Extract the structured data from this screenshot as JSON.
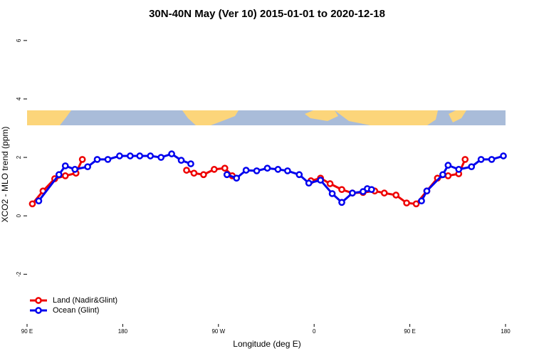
{
  "chart_data": {
    "type": "line",
    "title": "30N-40N May (Ver 10)   2015-01-01 to 2020-12-18",
    "x_label": "Longitude (deg E)",
    "y_label": "XCO2 - MLO trend (ppm)",
    "xlim": [
      90,
      540
    ],
    "xticks": [
      {
        "value": 90,
        "label": "90 E"
      },
      180,
      {
        "value": 270,
        "label": "90 W"
      },
      {
        "value": 360,
        "label": "0"
      },
      {
        "value": 450,
        "label": "90 E"
      },
      {
        "value": 540,
        "label": "180"
      }
    ],
    "ylim": [
      -3.7,
      6.46
    ],
    "yticks": [
      -2,
      0,
      2,
      4,
      6
    ],
    "legend": "bottom-left",
    "series": [
      {
        "name": "Land (Nadir&Glint)",
        "color": "#ee0000",
        "x": [
          95,
          105,
          116,
          126,
          136,
          142,
          null,
          240,
          247,
          256,
          266,
          276,
          283,
          null,
          357,
          366,
          375,
          386,
          396,
          406,
          417,
          426,
          437,
          447,
          456,
          466,
          476,
          486,
          496,
          502
        ],
        "values": [
          0.41,
          0.85,
          1.27,
          1.37,
          1.46,
          1.93,
          null,
          1.56,
          1.46,
          1.41,
          1.59,
          1.63,
          1.37,
          null,
          1.2,
          1.29,
          1.1,
          0.9,
          0.78,
          0.8,
          0.85,
          0.78,
          0.71,
          0.44,
          0.41,
          0.85,
          1.29,
          1.37,
          1.44,
          1.93
        ]
      },
      {
        "name": "Ocean (Glint)",
        "color": "#0000ee",
        "x": [
          101,
          120,
          126,
          135,
          147,
          156,
          166,
          177,
          187,
          196,
          206,
          216,
          226,
          235,
          244,
          null,
          278,
          287,
          296,
          306,
          316,
          326,
          335,
          346,
          355,
          366,
          377,
          386,
          396,
          406,
          410,
          414,
          null,
          461,
          466,
          481,
          486,
          496,
          508,
          517,
          527,
          538
        ],
        "values": [
          0.51,
          1.41,
          1.71,
          1.59,
          1.68,
          1.93,
          1.93,
          2.05,
          2.05,
          2.05,
          2.05,
          2.0,
          2.12,
          1.9,
          1.78,
          null,
          1.41,
          1.29,
          1.56,
          1.54,
          1.63,
          1.59,
          1.54,
          1.41,
          1.12,
          1.22,
          0.76,
          0.46,
          0.78,
          0.83,
          0.93,
          0.9,
          null,
          0.51,
          0.85,
          1.41,
          1.73,
          1.59,
          1.68,
          1.93,
          1.93,
          2.05
        ]
      }
    ]
  }
}
